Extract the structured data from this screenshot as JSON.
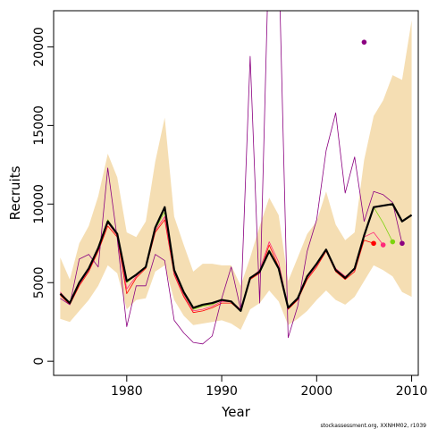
{
  "chart_data": {
    "type": "line",
    "title": "",
    "xlabel": "Year",
    "ylabel": "Recruits",
    "xlim": [
      1972.3,
      2010.7
    ],
    "ylim": [
      -900,
      22300
    ],
    "x_ticks": [
      1980,
      1990,
      2000,
      2010
    ],
    "y_ticks": [
      0,
      5000,
      10000,
      15000,
      20000
    ],
    "grid": false,
    "legend": "none",
    "credit": "stockassessment.org, XXNHM02, r1039",
    "colors": {
      "band": "#f5deb3",
      "estimate": "#000000",
      "retro_red": "#ff0000",
      "retro_pink": "#ff2a7a",
      "retro_green": "#7cd30e",
      "retro_purple": "#8b0080"
    },
    "band": {
      "name": "confidence interval",
      "x": [
        1973,
        1974,
        1975,
        1976,
        1977,
        1978,
        1979,
        1980,
        1981,
        1982,
        1983,
        1984,
        1985,
        1986,
        1987,
        1988,
        1989,
        1990,
        1991,
        1992,
        1993,
        1994,
        1995,
        1996,
        1997,
        1998,
        1999,
        2000,
        2001,
        2002,
        2003,
        2004,
        2005,
        2006,
        2007,
        2008,
        2009,
        2010
      ],
      "lower": [
        2700,
        2500,
        3200,
        3900,
        4800,
        6100,
        5600,
        3300,
        3900,
        4000,
        5700,
        6100,
        3900,
        2900,
        2300,
        2400,
        2500,
        2600,
        2400,
        2000,
        3300,
        3700,
        4500,
        3800,
        2300,
        2700,
        3200,
        3900,
        4500,
        3900,
        3600,
        4100,
        5100,
        6100,
        5800,
        5400,
        4400,
        4100
      ],
      "upper": [
        6600,
        5200,
        7500,
        8600,
        10500,
        13200,
        11700,
        8200,
        7900,
        8900,
        12700,
        15500,
        9200,
        7400,
        5700,
        6200,
        6200,
        6100,
        6100,
        4800,
        6600,
        8600,
        10400,
        9300,
        5100,
        6600,
        8100,
        8900,
        10800,
        8700,
        7700,
        8200,
        12800,
        15600,
        16600,
        18200,
        17900,
        21700
      ]
    },
    "series": [
      {
        "name": "estimate",
        "x": [
          1973,
          1974,
          1975,
          1976,
          1977,
          1978,
          1979,
          1980,
          1981,
          1982,
          1983,
          1984,
          1985,
          1986,
          1987,
          1988,
          1989,
          1990,
          1991,
          1992,
          1993,
          1994,
          1995,
          1996,
          1997,
          1998,
          1999,
          2000,
          2001,
          2002,
          2003,
          2004,
          2005,
          2006,
          2007,
          2008,
          2009,
          2010
        ],
        "values": [
          4300,
          3700,
          5000,
          5900,
          7200,
          8900,
          8100,
          5100,
          5500,
          6000,
          8500,
          9800,
          5800,
          4400,
          3400,
          3600,
          3700,
          3900,
          3800,
          3200,
          5300,
          5700,
          7000,
          5900,
          3400,
          4000,
          5400,
          6200,
          7100,
          5800,
          5300,
          5900,
          8000,
          9800,
          9900,
          10000,
          8900,
          9300
        ],
        "color": "#000000",
        "width": 2.2,
        "end_marker": false
      },
      {
        "name": "retro-1",
        "x": [
          1973,
          1974,
          1975,
          1976,
          1977,
          1978,
          1979,
          1980,
          1981,
          1982,
          1983,
          1984,
          1985,
          1986,
          1987,
          1988,
          1989,
          1990,
          1991,
          1992,
          1993,
          1994,
          1995,
          1996,
          1997,
          1998,
          1999,
          2000,
          2001,
          2002,
          2003,
          2004,
          2005,
          2006
        ],
        "values": [
          4200,
          3600,
          4800,
          5700,
          7000,
          8600,
          7900,
          4300,
          5300,
          5900,
          8200,
          9000,
          5500,
          4100,
          3100,
          3200,
          3400,
          3700,
          3700,
          3200,
          5200,
          5600,
          7400,
          6000,
          3300,
          3900,
          5200,
          6000,
          7000,
          5700,
          5200,
          5700,
          7700,
          7500
        ],
        "color": "#ff0000",
        "width": 0.8,
        "end_marker": true
      },
      {
        "name": "retro-2",
        "x": [
          1973,
          1974,
          1975,
          1976,
          1977,
          1978,
          1979,
          1980,
          1981,
          1982,
          1983,
          1984,
          1985,
          1986,
          1987,
          1988,
          1989,
          1990,
          1991,
          1992,
          1993,
          1994,
          1995,
          1996,
          1997,
          1998,
          1999,
          2000,
          2001,
          2002,
          2003,
          2004,
          2005,
          2006,
          2007
        ],
        "values": [
          4400,
          3700,
          4900,
          5800,
          7100,
          8800,
          8000,
          4600,
          5400,
          6000,
          8300,
          9200,
          5600,
          4200,
          3200,
          3300,
          3500,
          3800,
          3800,
          3300,
          5300,
          5800,
          7600,
          6300,
          3400,
          4000,
          5300,
          6100,
          7100,
          5900,
          5400,
          5800,
          7900,
          8200,
          7400
        ],
        "color": "#ff2a7a",
        "width": 0.8,
        "end_marker": true
      },
      {
        "name": "retro-3",
        "x": [
          1973,
          1974,
          1975,
          1976,
          1977,
          1978,
          1979,
          1980,
          1981,
          1982,
          1983,
          1984,
          1985,
          1986,
          1987,
          1988,
          1989,
          1990,
          1991,
          1992,
          1993,
          1994,
          1995,
          1996,
          1997,
          1998,
          1999,
          2000,
          2001,
          2002,
          2003,
          2004,
          2005,
          2006,
          2007,
          2008
        ],
        "values": [
          4300,
          3700,
          5000,
          5900,
          7200,
          9000,
          8100,
          5000,
          5500,
          6000,
          8400,
          9500,
          5700,
          4300,
          3300,
          3500,
          3600,
          3900,
          3800,
          3200,
          5300,
          5700,
          7100,
          5900,
          3400,
          4000,
          5400,
          6200,
          7100,
          5800,
          5300,
          5900,
          8000,
          9800,
          8800,
          7600
        ],
        "color": "#7cd30e",
        "width": 0.8,
        "end_marker": true
      },
      {
        "name": "retro-4",
        "x": [
          1973,
          1974,
          1975,
          1976,
          1977,
          1978,
          1979,
          1980,
          1981,
          1982,
          1983,
          1984,
          1985,
          1986,
          1987,
          1988,
          1989,
          1990,
          1991,
          1992,
          1993,
          1994,
          1995,
          1996,
          1997,
          1998,
          1999,
          2000,
          2001,
          2002,
          2003,
          2004,
          2005,
          2006,
          2007,
          2008,
          2009
        ],
        "values": [
          4000,
          3600,
          6500,
          6800,
          6000,
          12300,
          7800,
          2200,
          4800,
          4800,
          6800,
          6400,
          2600,
          1800,
          1200,
          1100,
          1600,
          4000,
          6000,
          3300,
          19400,
          3700,
          27000,
          26000,
          1500,
          3500,
          7000,
          9000,
          13400,
          15800,
          10700,
          13000,
          8900,
          10800,
          10600,
          10100,
          7500
        ],
        "color": "#8b0080",
        "width": 0.8,
        "end_marker": true
      },
      {
        "name": "retro-5",
        "x": [
          2005
        ],
        "values": [
          20300
        ],
        "color": "#8b0080",
        "width": 0.8,
        "end_marker": true
      }
    ]
  }
}
